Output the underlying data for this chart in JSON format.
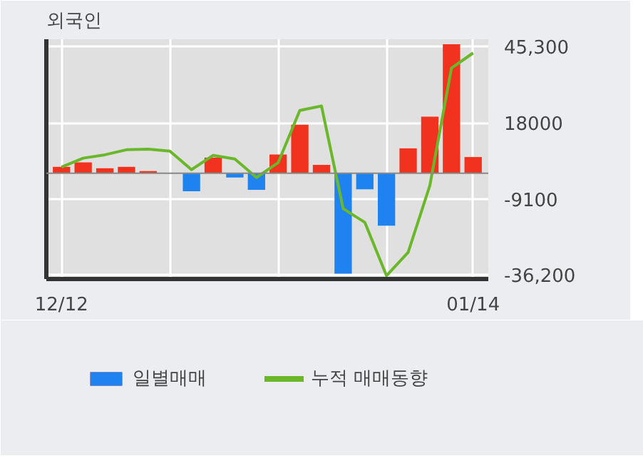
{
  "chart_data": {
    "type": "bar",
    "title": "외국인",
    "categories": [
      "12/12",
      null,
      null,
      null,
      null,
      null,
      null,
      null,
      null,
      null,
      null,
      null,
      null,
      null,
      null,
      null,
      null,
      null,
      null,
      "01/14"
    ],
    "series": [
      {
        "name": "일별매매",
        "type": "bar",
        "values": [
          2300,
          3900,
          1800,
          2300,
          800,
          0,
          -6400,
          5600,
          -1500,
          -5900,
          6700,
          17300,
          3000,
          -35800,
          -5700,
          -18700,
          8900,
          20200,
          46000,
          5800
        ],
        "colors": [
          "#f0321e",
          "#f0321e",
          "#f0321e",
          "#f0321e",
          "#f0321e",
          "#f0321e",
          "#1e82f0",
          "#f0321e",
          "#1e82f0",
          "#1e82f0",
          "#f0321e",
          "#f0321e",
          "#f0321e",
          "#1e82f0",
          "#1e82f0",
          "#1e82f0",
          "#f0321e",
          "#f0321e",
          "#f0321e",
          "#f0321e"
        ]
      },
      {
        "name": "누적 매매동향",
        "type": "line",
        "color": "#6ab82a",
        "values": [
          2200,
          5400,
          6600,
          8400,
          8600,
          7900,
          1300,
          6400,
          5100,
          -1500,
          3800,
          22400,
          24000,
          -12600,
          -17500,
          -36500,
          -28200,
          -4400,
          37500,
          42900
        ]
      }
    ],
    "ylim": [
      -37700,
      47800
    ],
    "yticks": [
      {
        "value": 45300,
        "label": "45,300"
      },
      18000,
      -9100,
      {
        "value": -36200,
        "label": "-36,200"
      }
    ],
    "ref_lines": [
      {
        "axis": "y",
        "value": 0,
        "color": "#888888"
      }
    ],
    "grid": true,
    "legend": "bottom"
  }
}
